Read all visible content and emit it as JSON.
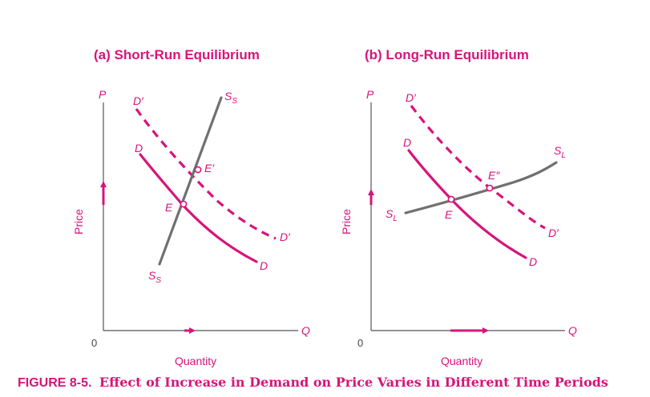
{
  "figure": {
    "caption_label": "FIGURE 8-5.",
    "caption_text": "Effect of Increase in Demand on Price Varies in Different Time Periods"
  },
  "panels": [
    {
      "title": "(a)  Short-Run Equilibrium",
      "y_axis_letter": "P",
      "x_axis_letter": "Q",
      "y_axis_title": "Price",
      "x_axis_title": "Quantity",
      "origin": "0",
      "labels": {
        "demand_new_top": "D′",
        "demand_new_end": "D′",
        "demand_top": "D",
        "demand_end": "D",
        "supply_top": "S",
        "supply_top_sub": "S",
        "supply_bottom": "S",
        "supply_bottom_sub": "S",
        "eq_initial": "E",
        "eq_new": "E′"
      }
    },
    {
      "title": "(b)  Long-Run Equilibrium",
      "y_axis_letter": "P",
      "x_axis_letter": "Q",
      "y_axis_title": "Price",
      "x_axis_title": "Quantity",
      "origin": "0",
      "labels": {
        "demand_new_top": "D′",
        "demand_new_end": "D′",
        "demand_top": "D",
        "demand_end": "D",
        "supply_left": "S",
        "supply_left_sub": "L",
        "supply_right": "S",
        "supply_right_sub": "L",
        "eq_initial": "E",
        "eq_new": "E″"
      }
    }
  ],
  "colors": {
    "accent": "#d6157a",
    "supply_curve": "#707070",
    "axis": "#555555"
  }
}
